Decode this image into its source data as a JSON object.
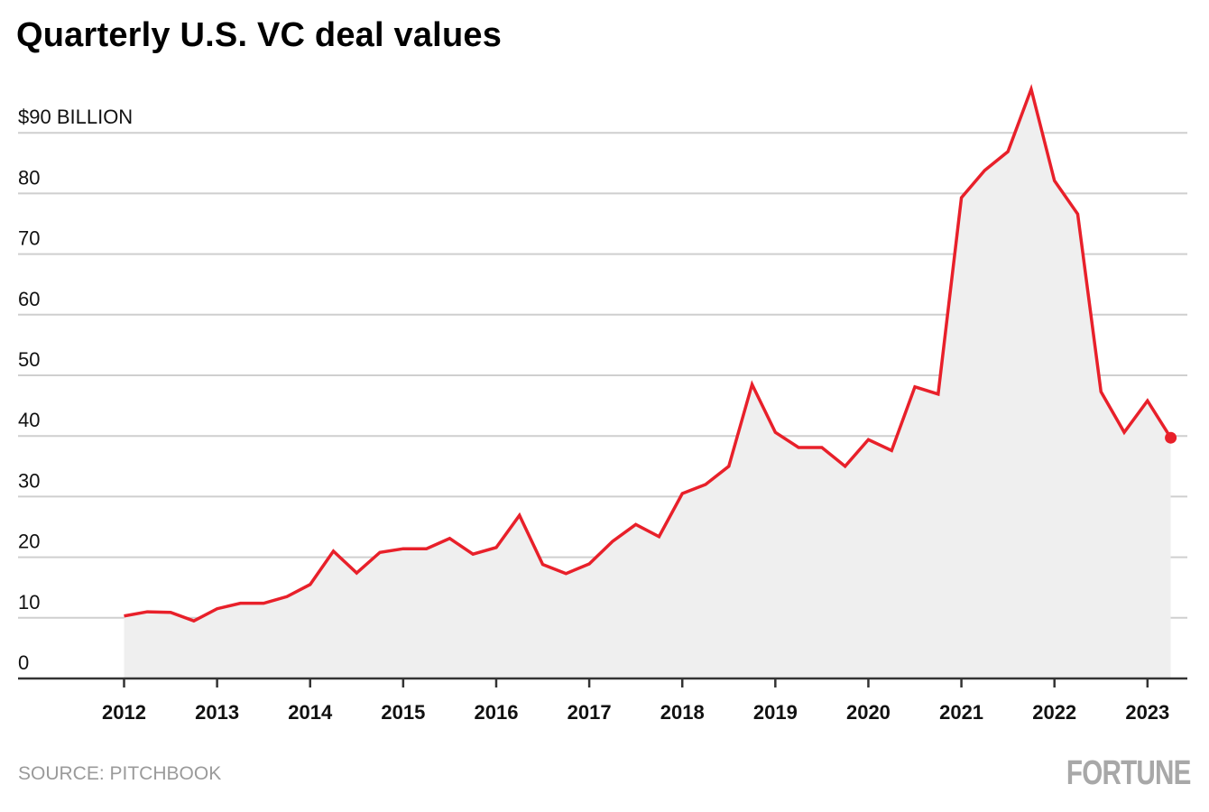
{
  "chart_data": {
    "type": "area",
    "title": "Quarterly U.S. VC deal values",
    "xlabel": "",
    "ylabel": "$ billion",
    "y_unit_label": "$90 BILLION",
    "ylim": [
      0,
      90
    ],
    "yticks": [
      0,
      10,
      20,
      30,
      40,
      50,
      60,
      70,
      80,
      90
    ],
    "ytick_labels": [
      "0",
      "10",
      "20",
      "30",
      "40",
      "50",
      "60",
      "70",
      "80",
      "$90 BILLION"
    ],
    "xtick_labels": [
      "2012",
      "2013",
      "2014",
      "2015",
      "2016",
      "2017",
      "2018",
      "2019",
      "2020",
      "2021",
      "2022",
      "2023"
    ],
    "grid": true,
    "series": [
      {
        "name": "Quarterly U.S. VC deal value",
        "color": "#e8202a",
        "fill": "#efefef",
        "x": [
          "2012Q1",
          "2012Q2",
          "2012Q3",
          "2012Q4",
          "2013Q1",
          "2013Q2",
          "2013Q3",
          "2013Q4",
          "2014Q1",
          "2014Q2",
          "2014Q3",
          "2014Q4",
          "2015Q1",
          "2015Q2",
          "2015Q3",
          "2015Q4",
          "2016Q1",
          "2016Q2",
          "2016Q3",
          "2016Q4",
          "2017Q1",
          "2017Q2",
          "2017Q3",
          "2017Q4",
          "2018Q1",
          "2018Q2",
          "2018Q3",
          "2018Q4",
          "2019Q1",
          "2019Q2",
          "2019Q3",
          "2019Q4",
          "2020Q1",
          "2020Q2",
          "2020Q3",
          "2020Q4",
          "2021Q1",
          "2021Q2",
          "2021Q3",
          "2021Q4",
          "2022Q1",
          "2022Q2",
          "2022Q3",
          "2022Q4",
          "2023Q1",
          "2023Q2"
        ],
        "values": [
          10.3,
          11.0,
          10.9,
          9.5,
          11.5,
          12.4,
          12.4,
          13.5,
          15.5,
          21.0,
          17.4,
          20.8,
          21.4,
          21.4,
          23.1,
          20.5,
          21.6,
          26.9,
          18.8,
          17.3,
          18.9,
          22.6,
          25.4,
          23.4,
          30.5,
          32.0,
          35.0,
          48.5,
          40.6,
          38.1,
          38.1,
          35.0,
          39.4,
          37.6,
          48.1,
          46.9,
          79.3,
          83.8,
          86.9,
          97.2,
          82.1,
          76.6,
          47.3,
          40.6,
          45.8,
          39.7
        ]
      }
    ],
    "last_point_marker": true
  },
  "footer": {
    "source": "SOURCE: PITCHBOOK",
    "brand": "FORTUNE"
  }
}
